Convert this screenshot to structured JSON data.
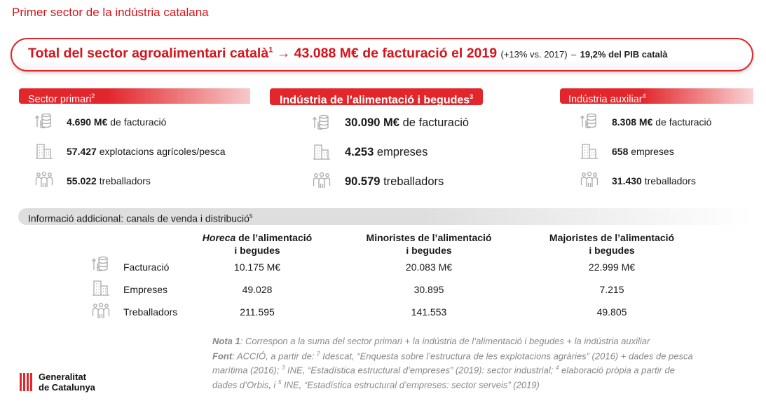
{
  "page_title": "Primer sector de la indústria catalana",
  "banner": {
    "main": "Total del sector agroalimentari català",
    "sup": "1",
    "arrow": "→",
    "value_text": "43.088 M€ de facturació el 2019",
    "growth": "(+13% vs. 2017)",
    "dash": "–",
    "pib": "19,2% del PIB català"
  },
  "sections": {
    "primari": {
      "title": "Sector primari",
      "sup": "2",
      "facturacio_value": "4.690 M€",
      "facturacio_label": "de facturació",
      "explotacions_value": "57.427",
      "explotacions_label": "explotacions agrícoles/pesca",
      "treballadors_value": "55.022",
      "treballadors_label": "treballadors"
    },
    "industria": {
      "title": "Indústria de l’alimentació i begudes",
      "sup": "3",
      "facturacio_value": "30.090 M€",
      "facturacio_label": "de facturació",
      "empreses_value": "4.253",
      "empreses_label": "empreses",
      "treballadors_value": "90.579",
      "treballadors_label": "treballadors"
    },
    "auxiliar": {
      "title": "Indústria auxiliar",
      "sup": "4",
      "facturacio_value": "8.308 M€",
      "facturacio_label": "de facturació",
      "empreses_value": "658",
      "empreses_label": "empreses",
      "treballadors_value": "31.430",
      "treballadors_label": "treballadors"
    }
  },
  "info": {
    "title": "Informació addicional: canals de venda i distribució",
    "sup": "5",
    "columns": [
      {
        "emph": "Horeca",
        "line1": " de l’alimentació",
        "line2": "i begudes"
      },
      {
        "emph": "",
        "line1": "Minoristes de l’alimentació",
        "line2": "i begudes"
      },
      {
        "emph": "",
        "line1": "Majoristes de l’alimentació",
        "line2": "i begudes"
      }
    ],
    "rows": [
      {
        "label": "Facturació",
        "values": [
          "10.175 M€",
          "20.083 M€",
          "22.999 M€"
        ]
      },
      {
        "label": "Empreses",
        "values": [
          "49.028",
          "30.895",
          "7.215"
        ]
      },
      {
        "label": "Treballadors",
        "values": [
          "211.595",
          "141.553",
          "49.805"
        ]
      }
    ]
  },
  "notes": {
    "nota_label": "Nota 1",
    "nota_text": ": Correspon a la suma del sector primari + la indústria de l’alimentació i begudes + la indústria auxiliar",
    "font_label": "Font",
    "font_a": ": ACCIÓ, a partir de: ",
    "sup2": "2",
    "font_b": " Idescat, “Enquesta sobre l’estructura de les explotacions agràries” (2016) + dades de pesca",
    "line3a": "marítima (2016); ",
    "sup3": "3",
    "line3b": " INE, “Estadística estructural d’empreses” (2019): sector industrial; ",
    "sup4": "4",
    "line3c": " elaboració pròpia a partir de",
    "line4a": "dades d’Orbis, i ",
    "sup5": "5",
    "line4b": " INE, “Estadística estructural d’empreses: sector serveis” (2019)"
  },
  "logo": {
    "line1": "Generalitat",
    "line2": "de Catalunya"
  },
  "colors": {
    "accent": "#e2262b",
    "title_red": "#d6141b",
    "icon_gray": "#a9a9a9",
    "note_gray": "#888888"
  },
  "icons": {
    "facturacio": "coins-arrow-icon",
    "empreses": "buildings-icon",
    "treballadors": "people-icon"
  }
}
